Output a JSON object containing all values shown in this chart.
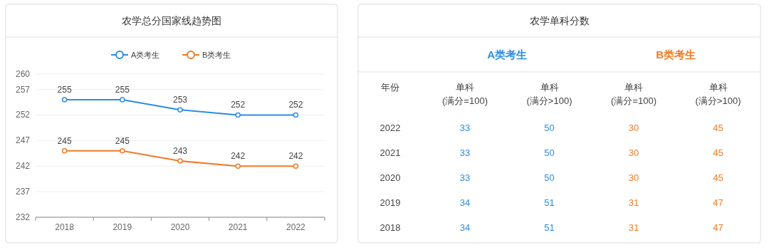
{
  "chart_data": [
    {
      "type": "line",
      "title": "农学总分国家线趋势图",
      "categories": [
        "2018",
        "2019",
        "2020",
        "2021",
        "2022"
      ],
      "series": [
        {
          "name": "A类考生",
          "color": "#2b8de3",
          "values": [
            255,
            255,
            253,
            252,
            252
          ]
        },
        {
          "name": "B类考生",
          "color": "#f07c26",
          "values": [
            245,
            245,
            243,
            242,
            242
          ]
        }
      ],
      "ylim": [
        232,
        260
      ],
      "yticks": [
        232,
        237,
        242,
        247,
        252,
        257,
        260
      ],
      "grid": "y",
      "legend": "top",
      "marker": "circle",
      "line_style": "solid",
      "data_labels": true
    },
    {
      "type": "heatmap",
      "title": "农学单科分数",
      "ylabel": "年份",
      "annotations": [
        "A类考生",
        "B类考生"
      ],
      "data_labels": true,
      "colors": [
        "#2b8de3",
        "#2b8de3",
        "#f07c26",
        "#f07c26"
      ],
      "categories": [
        "单科\n(满分=100)",
        "单科\n(满分>100)",
        "单科\n(满分=100)",
        "单科\n(满分>100)"
      ],
      "y_categories": [
        "2022",
        "2021",
        "2020",
        "2019",
        "2018"
      ],
      "cells": [
        [
          33,
          50,
          30,
          45
        ],
        [
          33,
          50,
          30,
          45
        ],
        [
          33,
          50,
          30,
          45
        ],
        [
          34,
          51,
          31,
          47
        ],
        [
          34,
          51,
          31,
          47
        ]
      ]
    }
  ]
}
